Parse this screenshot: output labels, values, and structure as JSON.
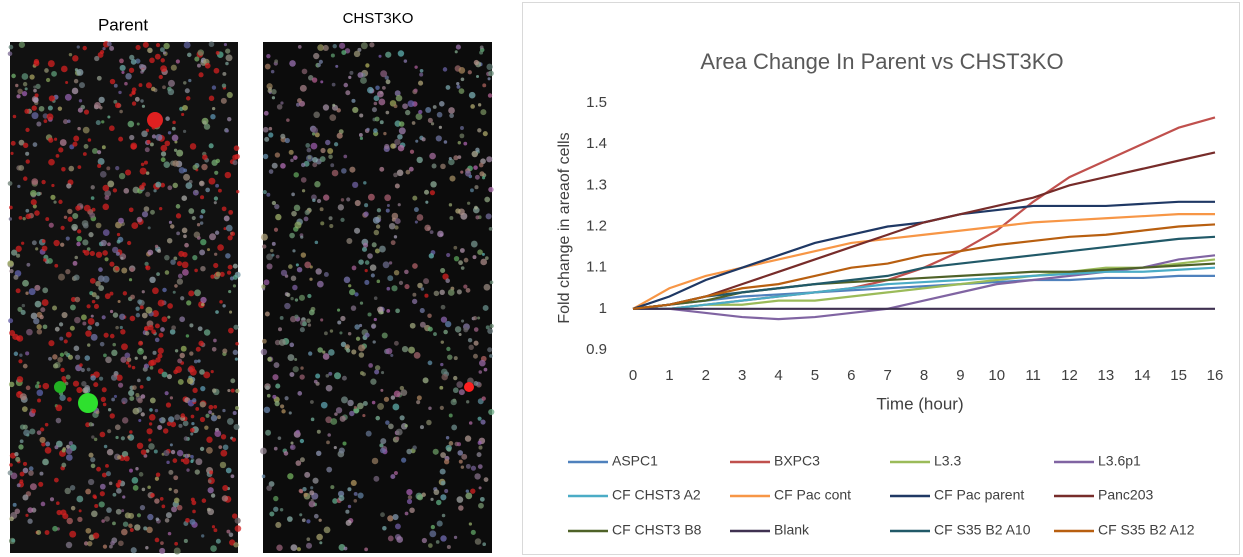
{
  "images": [
    {
      "label": "Parent"
    },
    {
      "label": "CHST3KO"
    }
  ],
  "chart_data": {
    "type": "line",
    "title": "Area Change In Parent vs CHST3KO",
    "x_label": "Time (hour)",
    "y_label": "Fold change in areaof cells",
    "x": [
      0,
      1,
      2,
      3,
      4,
      5,
      6,
      7,
      8,
      9,
      10,
      11,
      12,
      13,
      14,
      15,
      16
    ],
    "xlim": [
      0,
      16
    ],
    "xticks": [
      0,
      1,
      2,
      3,
      4,
      5,
      6,
      7,
      8,
      9,
      10,
      11,
      12,
      13,
      14,
      15,
      16
    ],
    "ylim": [
      0.9,
      1.5
    ],
    "yticks": [
      0.9,
      1,
      1.1,
      1.2,
      1.3,
      1.4,
      1.5
    ],
    "grid": false,
    "legend": "bottom",
    "series": [
      {
        "name": "ASPC1",
        "color": "#4f81bd",
        "values": [
          1,
          1.01,
          1.02,
          1.03,
          1.035,
          1.04,
          1.045,
          1.05,
          1.055,
          1.06,
          1.065,
          1.07,
          1.07,
          1.075,
          1.075,
          1.08,
          1.08
        ]
      },
      {
        "name": "BXPC3",
        "color": "#c0504d",
        "values": [
          1,
          1.0,
          1.01,
          1.02,
          1.03,
          1.04,
          1.05,
          1.07,
          1.1,
          1.14,
          1.19,
          1.26,
          1.32,
          1.36,
          1.4,
          1.44,
          1.465
        ]
      },
      {
        "name": "L3.3",
        "color": "#9bbb59",
        "values": [
          1,
          1.0,
          1.01,
          1.01,
          1.02,
          1.02,
          1.03,
          1.04,
          1.05,
          1.06,
          1.07,
          1.08,
          1.09,
          1.1,
          1.1,
          1.11,
          1.12
        ]
      },
      {
        "name": "L3.6p1",
        "color": "#8064a2",
        "values": [
          1,
          1.0,
          0.99,
          0.98,
          0.975,
          0.98,
          0.99,
          1.0,
          1.02,
          1.04,
          1.06,
          1.07,
          1.08,
          1.09,
          1.1,
          1.12,
          1.13
        ]
      },
      {
        "name": "CF CHST3 A2",
        "color": "#4bacc6",
        "values": [
          1,
          1.0,
          1.01,
          1.02,
          1.03,
          1.04,
          1.05,
          1.06,
          1.065,
          1.07,
          1.075,
          1.08,
          1.085,
          1.09,
          1.09,
          1.095,
          1.1
        ]
      },
      {
        "name": "CF Pac cont",
        "color": "#f79646",
        "values": [
          1,
          1.05,
          1.08,
          1.1,
          1.12,
          1.14,
          1.16,
          1.17,
          1.18,
          1.19,
          1.2,
          1.21,
          1.215,
          1.22,
          1.225,
          1.23,
          1.23
        ]
      },
      {
        "name": "CF Pac parent",
        "color": "#1f3864",
        "values": [
          1,
          1.03,
          1.07,
          1.1,
          1.13,
          1.16,
          1.18,
          1.2,
          1.21,
          1.23,
          1.24,
          1.25,
          1.25,
          1.25,
          1.255,
          1.26,
          1.26
        ]
      },
      {
        "name": "Panc203",
        "color": "#772c2a",
        "values": [
          1,
          1.01,
          1.03,
          1.06,
          1.09,
          1.12,
          1.15,
          1.18,
          1.21,
          1.23,
          1.25,
          1.27,
          1.3,
          1.32,
          1.34,
          1.36,
          1.38
        ]
      },
      {
        "name": "CF CHST3 B8",
        "color": "#4f6228",
        "values": [
          1,
          1.01,
          1.02,
          1.04,
          1.05,
          1.06,
          1.065,
          1.07,
          1.075,
          1.08,
          1.085,
          1.09,
          1.09,
          1.095,
          1.1,
          1.105,
          1.11
        ]
      },
      {
        "name": "Blank",
        "color": "#3f3151",
        "values": [
          1,
          1,
          1,
          1,
          1,
          1,
          1,
          1,
          1,
          1,
          1,
          1,
          1,
          1,
          1,
          1,
          1
        ]
      },
      {
        "name": "CF S35 B2 A10",
        "color": "#215968",
        "values": [
          1,
          1.01,
          1.03,
          1.04,
          1.05,
          1.06,
          1.07,
          1.08,
          1.1,
          1.11,
          1.12,
          1.13,
          1.14,
          1.15,
          1.16,
          1.17,
          1.175
        ]
      },
      {
        "name": "CF S35 B2 A12",
        "color": "#b85f10",
        "values": [
          1,
          1.01,
          1.03,
          1.05,
          1.06,
          1.08,
          1.1,
          1.11,
          1.13,
          1.14,
          1.155,
          1.165,
          1.175,
          1.18,
          1.19,
          1.2,
          1.205
        ]
      }
    ]
  }
}
